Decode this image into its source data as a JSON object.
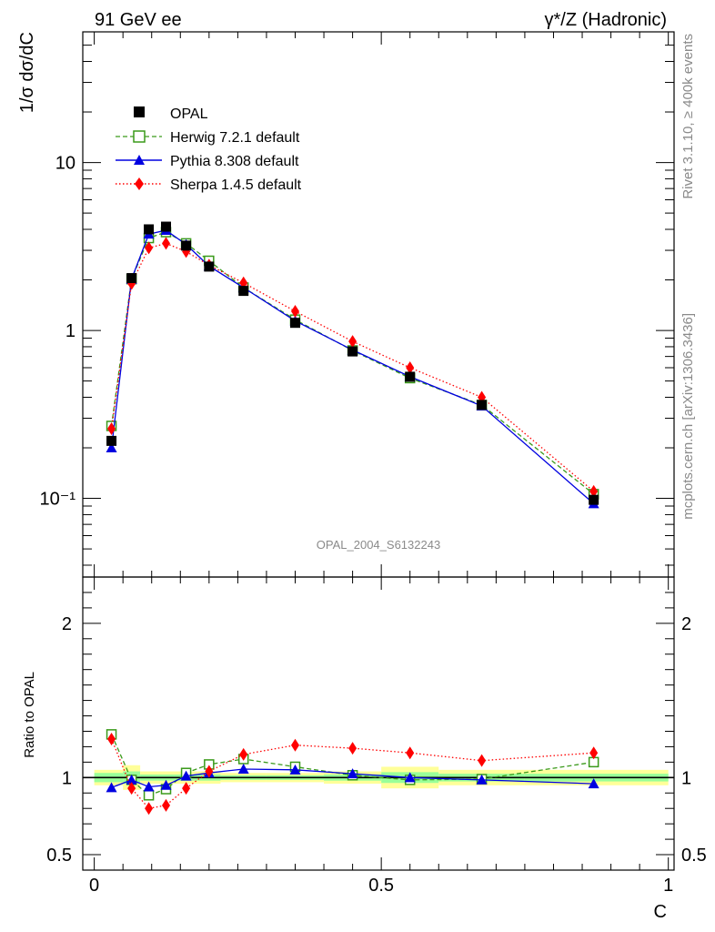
{
  "header": {
    "left": "91 GeV ee",
    "right": "γ*/Z (Hadronic)"
  },
  "side_text": {
    "top": "Rivet 3.1.10, ≥ 400k events",
    "bottom": "mcplots.cern.ch [arXiv:1306.3436]"
  },
  "watermark": "OPAL_2004_S6132243",
  "colors": {
    "opal": "#000000",
    "herwig": "#3a9a1a",
    "pythia": "#0000e0",
    "sherpa": "#ff0000",
    "band_yellow": "#ffff99",
    "band_green": "#99ff99"
  },
  "chart_data": [
    {
      "panel": "main",
      "type": "line",
      "title": "",
      "xlabel": "C",
      "ylabel": "1/σ dσ/dC",
      "yscale": "log",
      "xlim": [
        -0.02,
        1.01
      ],
      "ylim": [
        0.034,
        60
      ],
      "x_ticks": [
        "0",
        "0.5",
        "1"
      ],
      "y_ticks": [
        "10⁻¹",
        "1",
        "10"
      ],
      "x": [
        0.03,
        0.065,
        0.095,
        0.125,
        0.16,
        0.2,
        0.26,
        0.35,
        0.45,
        0.55,
        0.675,
        0.87
      ],
      "series": [
        {
          "name": "OPAL",
          "style": "data",
          "values": [
            0.22,
            2.05,
            4.0,
            4.15,
            3.2,
            2.4,
            1.72,
            1.11,
            0.75,
            0.53,
            0.36,
            0.098
          ]
        },
        {
          "name": "Herwig 7.2.1 default",
          "style": "dashed",
          "values": [
            0.27,
            2.02,
            3.55,
            3.85,
            3.3,
            2.6,
            1.8,
            1.16,
            0.76,
            0.52,
            0.36,
            0.106
          ]
        },
        {
          "name": "Pythia 8.308 default",
          "style": "solid",
          "values": [
            0.2,
            2.02,
            3.75,
            3.95,
            3.25,
            2.42,
            1.8,
            1.14,
            0.765,
            0.53,
            0.355,
            0.093
          ]
        },
        {
          "name": "Sherpa 1.4.5 default",
          "style": "dotted",
          "values": [
            0.26,
            1.9,
            3.1,
            3.3,
            2.95,
            2.45,
            1.92,
            1.3,
            0.86,
            0.6,
            0.4,
            0.11
          ]
        }
      ],
      "legend": [
        "OPAL",
        "Herwig 7.2.1 default",
        "Pythia 8.308 default",
        "Sherpa 1.4.5 default"
      ],
      "legend_position": "top-left"
    },
    {
      "panel": "ratio",
      "type": "line",
      "ylabel": "Ratio to OPAL",
      "xlabel": "C",
      "xlim": [
        -0.02,
        1.01
      ],
      "ylim": [
        0.4,
        2.3
      ],
      "y_ticks": [
        "0.5",
        "1",
        "2"
      ],
      "x": [
        0.03,
        0.065,
        0.095,
        0.125,
        0.16,
        0.2,
        0.26,
        0.35,
        0.45,
        0.55,
        0.675,
        0.87
      ],
      "bands": [
        {
          "x0": 0.0,
          "x1": 0.05,
          "yellow": [
            0.95,
            1.05
          ],
          "green": [
            0.97,
            1.03
          ]
        },
        {
          "x0": 0.05,
          "x1": 0.08,
          "yellow": [
            0.92,
            1.08
          ],
          "green": [
            0.96,
            1.04
          ]
        },
        {
          "x0": 0.08,
          "x1": 0.11,
          "yellow": [
            0.96,
            1.04
          ],
          "green": [
            0.98,
            1.02
          ]
        },
        {
          "x0": 0.11,
          "x1": 0.14,
          "yellow": [
            0.96,
            1.04
          ],
          "green": [
            0.98,
            1.02
          ]
        },
        {
          "x0": 0.14,
          "x1": 0.18,
          "yellow": [
            0.96,
            1.04
          ],
          "green": [
            0.98,
            1.02
          ]
        },
        {
          "x0": 0.18,
          "x1": 0.22,
          "yellow": [
            0.96,
            1.04
          ],
          "green": [
            0.98,
            1.02
          ]
        },
        {
          "x0": 0.22,
          "x1": 0.3,
          "yellow": [
            0.97,
            1.03
          ],
          "green": [
            0.985,
            1.015
          ]
        },
        {
          "x0": 0.3,
          "x1": 0.4,
          "yellow": [
            0.97,
            1.03
          ],
          "green": [
            0.985,
            1.015
          ]
        },
        {
          "x0": 0.4,
          "x1": 0.5,
          "yellow": [
            0.96,
            1.04
          ],
          "green": [
            0.98,
            1.02
          ]
        },
        {
          "x0": 0.5,
          "x1": 0.6,
          "yellow": [
            0.93,
            1.07
          ],
          "green": [
            0.965,
            1.035
          ]
        },
        {
          "x0": 0.6,
          "x1": 0.75,
          "yellow": [
            0.95,
            1.05
          ],
          "green": [
            0.975,
            1.025
          ]
        },
        {
          "x0": 0.75,
          "x1": 1.0,
          "yellow": [
            0.95,
            1.05
          ],
          "green": [
            0.975,
            1.025
          ]
        }
      ],
      "series": [
        {
          "name": "Herwig 7.2.1 default",
          "style": "dashed",
          "values": [
            1.28,
            0.985,
            0.885,
            0.925,
            1.03,
            1.085,
            1.12,
            1.07,
            1.015,
            0.985,
            0.99,
            1.1
          ]
        },
        {
          "name": "Pythia 8.308 default",
          "style": "solid",
          "values": [
            0.935,
            0.985,
            0.94,
            0.95,
            1.01,
            1.03,
            1.055,
            1.05,
            1.025,
            1.0,
            0.985,
            0.96
          ]
        },
        {
          "name": "Sherpa 1.4.5 default",
          "style": "dotted",
          "values": [
            1.25,
            0.93,
            0.8,
            0.82,
            0.93,
            1.04,
            1.15,
            1.21,
            1.19,
            1.16,
            1.11,
            1.16
          ]
        }
      ]
    }
  ]
}
